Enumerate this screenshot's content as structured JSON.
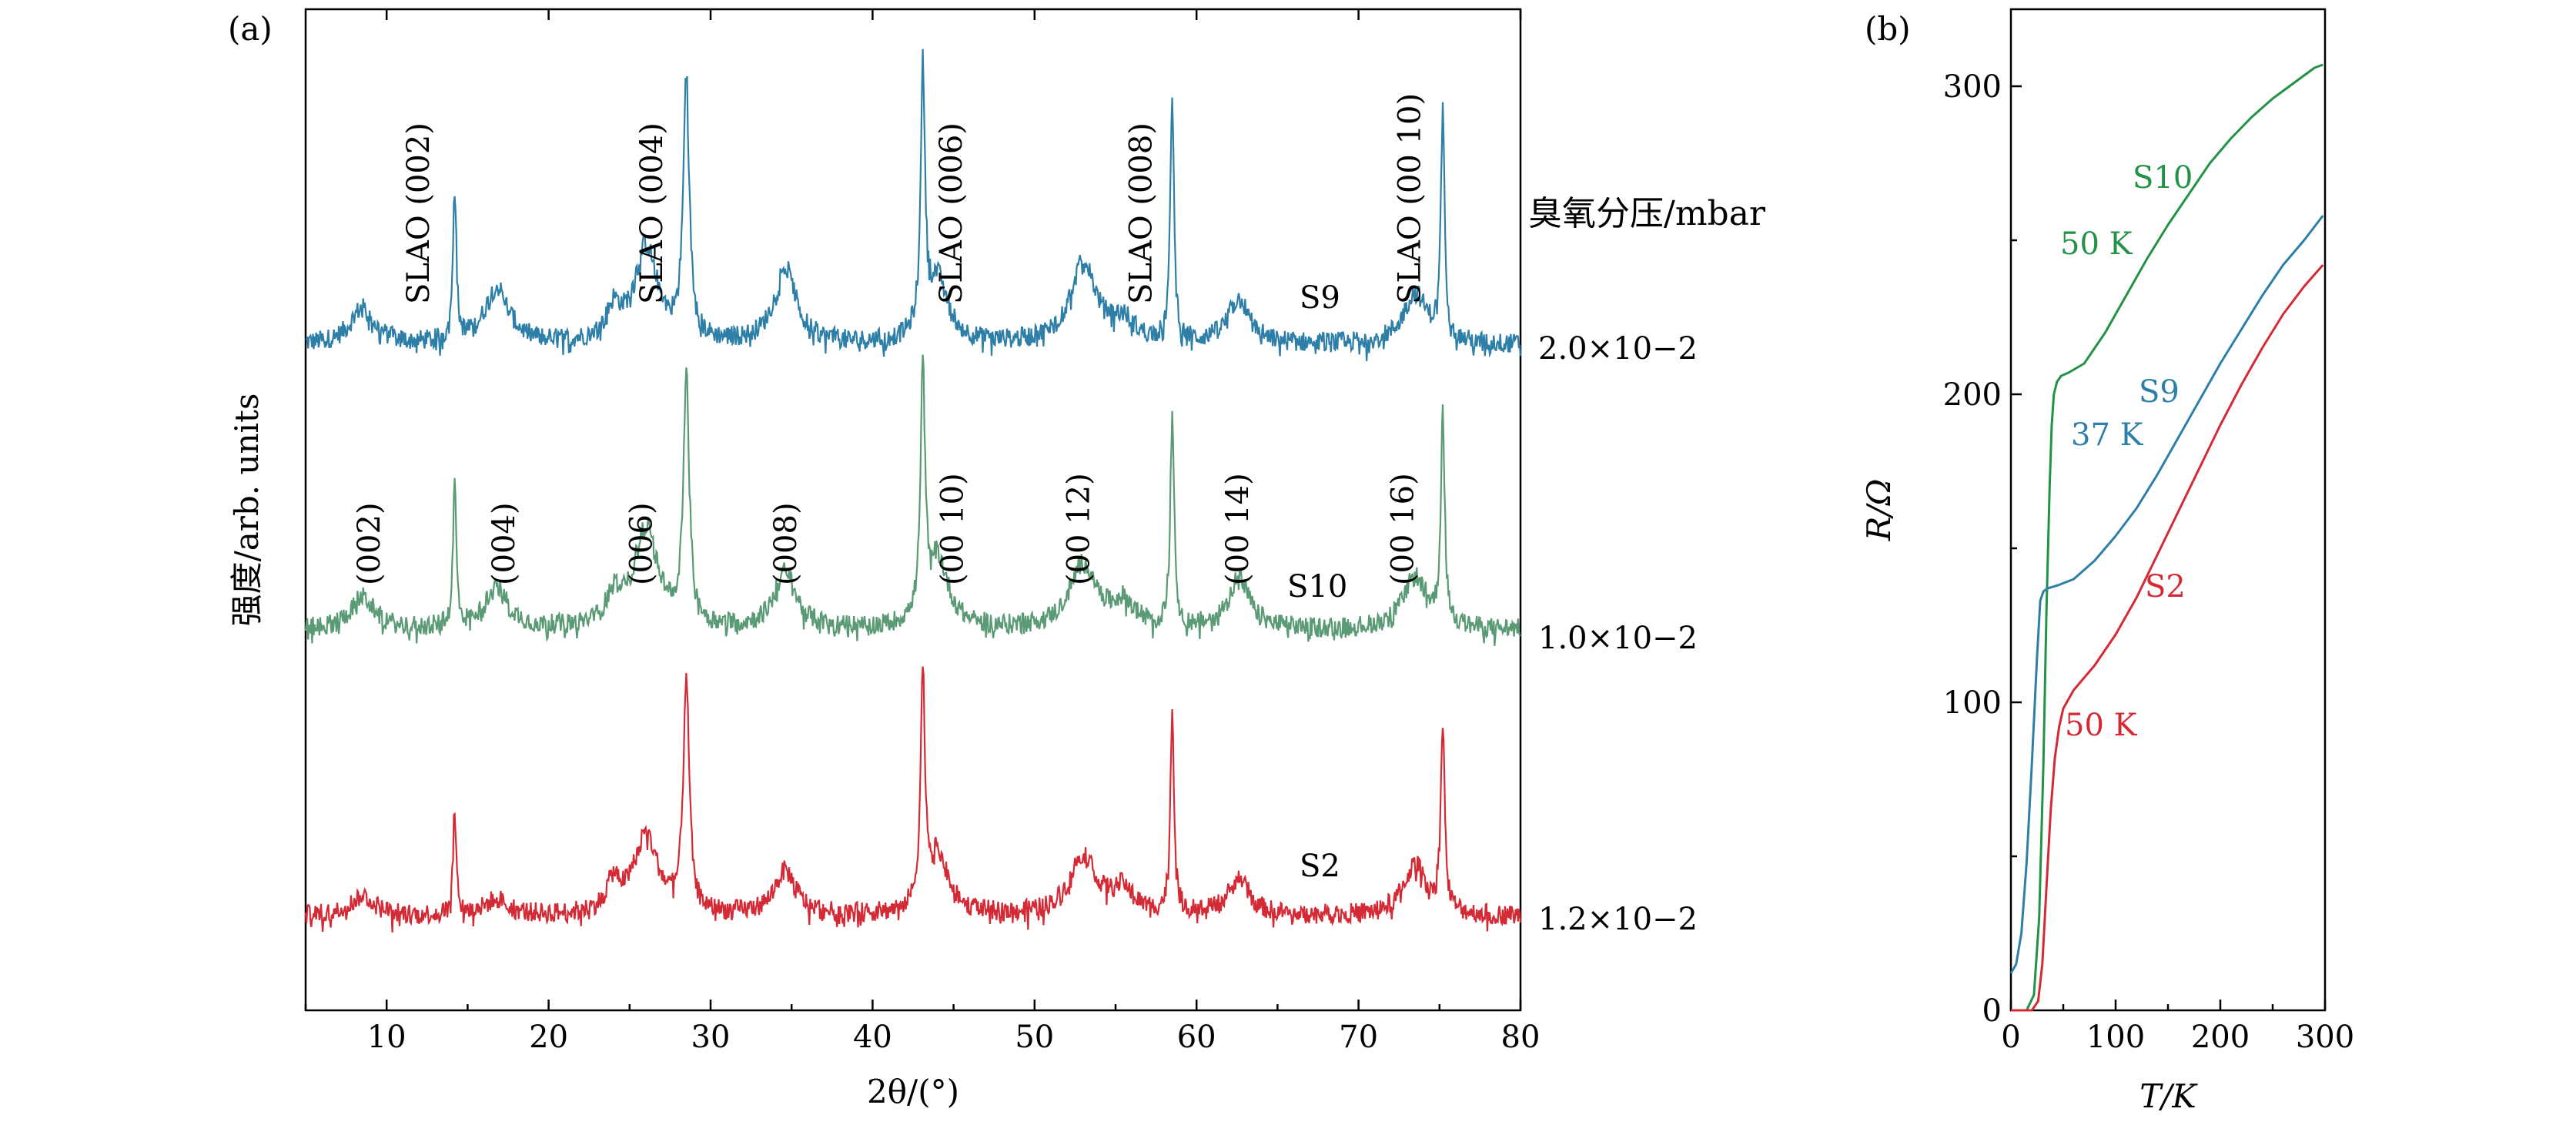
{
  "chart_data": [
    {
      "panel": "(a)",
      "type": "line",
      "xlabel": "2θ/(°)",
      "ylabel": "强度/arb. units",
      "xlim": [
        5,
        80
      ],
      "x_ticks": [
        10,
        20,
        30,
        40,
        50,
        60,
        70,
        80
      ],
      "legend_title": "臭氧分压/mbar",
      "series": [
        {
          "name": "S9",
          "pressure": "2.0×10−2",
          "color": "#2e7fa8"
        },
        {
          "name": "S10",
          "pressure": "1.0×10−2",
          "color": "#5a9a74"
        },
        {
          "name": "S2",
          "pressure": "1.2×10−2",
          "color": "#d42a35"
        }
      ],
      "peaks": [
        {
          "x": 8.5,
          "h": 0.14,
          "w": 0.9,
          "s": [
            0.18,
            0.16,
            0.1
          ]
        },
        {
          "x": 14.2,
          "h": 0.8,
          "w": 0.12,
          "s": [
            0.8,
            0.72,
            0.52
          ]
        },
        {
          "x": 16.8,
          "h": 0.2,
          "w": 0.9,
          "s": [
            0.28,
            0.2,
            0.08
          ]
        },
        {
          "x": 24.0,
          "h": 0.15,
          "w": 0.5,
          "s": [
            0.15,
            0.15,
            0.15
          ]
        },
        {
          "x": 26.0,
          "h": 0.55,
          "w": 0.9,
          "s": [
            0.48,
            0.5,
            0.4
          ]
        },
        {
          "x": 28.5,
          "h": 1.3,
          "w": 0.22,
          "s": [
            1.3,
            1.22,
            1.15
          ]
        },
        {
          "x": 34.6,
          "h": 0.35,
          "w": 0.8,
          "s": [
            0.38,
            0.28,
            0.22
          ]
        },
        {
          "x": 43.1,
          "h": 1.25,
          "w": 0.16,
          "s": [
            1.28,
            1.2,
            1.12
          ]
        },
        {
          "x": 44.0,
          "h": 0.35,
          "w": 0.8,
          "s": [
            0.32,
            0.35,
            0.3
          ]
        },
        {
          "x": 53.0,
          "h": 0.4,
          "w": 1.0,
          "s": [
            0.4,
            0.32,
            0.3
          ]
        },
        {
          "x": 55.5,
          "h": 0.12,
          "w": 0.8,
          "s": [
            0.1,
            0.12,
            0.12
          ]
        },
        {
          "x": 58.5,
          "h": 1.22,
          "w": 0.14,
          "s": [
            1.22,
            1.1,
            1.0
          ]
        },
        {
          "x": 62.6,
          "h": 0.25,
          "w": 0.8,
          "s": [
            0.22,
            0.25,
            0.18
          ]
        },
        {
          "x": 73.5,
          "h": 0.28,
          "w": 0.9,
          "s": [
            0.25,
            0.26,
            0.25
          ]
        },
        {
          "x": 75.2,
          "h": 1.1,
          "w": 0.14,
          "s": [
            1.12,
            1.05,
            0.95
          ]
        }
      ],
      "annotations_S9": [
        {
          "text": "SLAO (002)",
          "x": 12.6
        },
        {
          "text": "SLAO (004)",
          "x": 27.0
        },
        {
          "text": "SLAO (006)",
          "x": 45.5
        },
        {
          "text": "SLAO (008)",
          "x": 57.2
        },
        {
          "text": "SLAO (00 10)",
          "x": 73.8
        }
      ],
      "annotations_S10": [
        {
          "text": "(002)",
          "x": 9.0
        },
        {
          "text": "(004)",
          "x": 17.3
        },
        {
          "text": "(006)",
          "x": 25.8
        },
        {
          "text": "(008)",
          "x": 34.7
        },
        {
          "text": "(00 10)",
          "x": 45.0
        },
        {
          "text": "(00 12)",
          "x": 52.8
        },
        {
          "text": "(00 14)",
          "x": 62.6
        },
        {
          "text": "(00 16)",
          "x": 72.8
        }
      ]
    },
    {
      "panel": "(b)",
      "type": "line",
      "xlabel": "T/K",
      "ylabel": "R/Ω",
      "xlim": [
        0,
        300
      ],
      "ylim": [
        0,
        325
      ],
      "x_ticks": [
        0,
        100,
        200,
        300
      ],
      "y_ticks": [
        0,
        100,
        200,
        300
      ],
      "series": [
        {
          "name": "S10",
          "color": "#229246",
          "annotation": "50 K",
          "points": [
            [
              0,
              0
            ],
            [
              15,
              0
            ],
            [
              22,
              5
            ],
            [
              27,
              30
            ],
            [
              31,
              80
            ],
            [
              34,
              130
            ],
            [
              37,
              170
            ],
            [
              39,
              190
            ],
            [
              41,
              200
            ],
            [
              44,
              204
            ],
            [
              48,
              206
            ],
            [
              55,
              207
            ],
            [
              70,
              210
            ],
            [
              90,
              220
            ],
            [
              110,
              232
            ],
            [
              130,
              244
            ],
            [
              150,
              255
            ],
            [
              170,
              265
            ],
            [
              190,
              275
            ],
            [
              210,
              283
            ],
            [
              230,
              290
            ],
            [
              250,
              296
            ],
            [
              270,
              301
            ],
            [
              290,
              306
            ],
            [
              298,
              307
            ]
          ]
        },
        {
          "name": "S9",
          "color": "#2e7fa8",
          "annotation": "37 K",
          "points": [
            [
              0,
              12
            ],
            [
              5,
              15
            ],
            [
              10,
              25
            ],
            [
              15,
              48
            ],
            [
              20,
              80
            ],
            [
              25,
              115
            ],
            [
              28,
              133
            ],
            [
              31,
              136
            ],
            [
              35,
              137
            ],
            [
              45,
              138
            ],
            [
              60,
              140
            ],
            [
              80,
              146
            ],
            [
              100,
              154
            ],
            [
              120,
              163
            ],
            [
              140,
              174
            ],
            [
              160,
              186
            ],
            [
              180,
              198
            ],
            [
              200,
              210
            ],
            [
              220,
              221
            ],
            [
              240,
              232
            ],
            [
              260,
              242
            ],
            [
              280,
              250
            ],
            [
              298,
              258
            ]
          ]
        },
        {
          "name": "S2",
          "color": "#d42a35",
          "annotation": "50 K",
          "points": [
            [
              0,
              0
            ],
            [
              20,
              0
            ],
            [
              26,
              3
            ],
            [
              30,
              15
            ],
            [
              34,
              40
            ],
            [
              38,
              65
            ],
            [
              42,
              82
            ],
            [
              46,
              92
            ],
            [
              50,
              98
            ],
            [
              60,
              104
            ],
            [
              80,
              112
            ],
            [
              100,
              122
            ],
            [
              120,
              134
            ],
            [
              140,
              148
            ],
            [
              160,
              162
            ],
            [
              180,
              176
            ],
            [
              200,
              190
            ],
            [
              220,
              203
            ],
            [
              240,
              215
            ],
            [
              260,
              226
            ],
            [
              280,
              235
            ],
            [
              298,
              242
            ]
          ]
        }
      ]
    }
  ]
}
